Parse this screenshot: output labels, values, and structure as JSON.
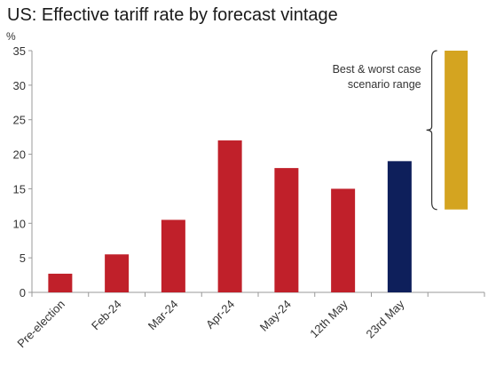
{
  "chart_data": {
    "type": "bar",
    "title": "US: Effective tariff rate by forecast vintage",
    "ylabel": "%",
    "xlabel": "",
    "ylim": [
      0,
      35
    ],
    "yticks": [
      0,
      5,
      10,
      15,
      20,
      25,
      30,
      35
    ],
    "grid": false,
    "categories": [
      "Pre-election",
      "Feb-24",
      "Mar-24",
      "Apr-24",
      "May-24",
      "12th May",
      "23rd May"
    ],
    "values": [
      2.7,
      5.5,
      10.5,
      22,
      18,
      15,
      19
    ],
    "bar_colors": [
      "#c0202a",
      "#c0202a",
      "#c0202a",
      "#c0202a",
      "#c0202a",
      "#c0202a",
      "#0e1f5b"
    ],
    "range_bar": {
      "low": 12,
      "high": 35,
      "color": "#d4a420",
      "annotation_lines": [
        "Best & worst case",
        "scenario range"
      ]
    }
  }
}
